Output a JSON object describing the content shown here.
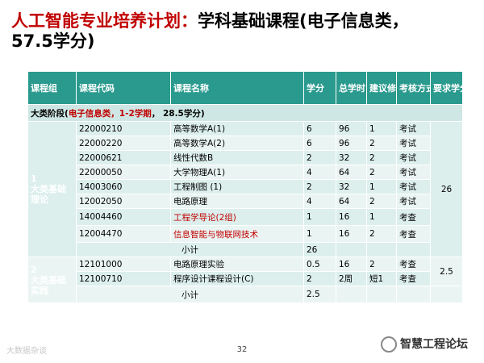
{
  "title": {
    "part1": "人工智能专业培养计划：",
    "part2": "学科基础课程(电子信息类，",
    "part3": "57.5学分)"
  },
  "table": {
    "headers": [
      "课程组",
      "课程代码",
      "课程名称",
      "学分",
      "总学时",
      "建议修读学期",
      "考核方式",
      "要求学分"
    ],
    "section": {
      "prefix": "大类阶段(",
      "highlight": "电子信息类，1-2学期",
      "suffix": "， 28.5学分)"
    },
    "group1": {
      "name": "1\n大类基础\n理论",
      "required": "26"
    },
    "rows1": [
      {
        "code": "22000210",
        "name": "高等数学A(1)",
        "credit": "6",
        "hours": "96",
        "term": "1",
        "exam": "考试"
      },
      {
        "code": "22000220",
        "name": "高等数学A(2)",
        "credit": "6",
        "hours": "96",
        "term": "2",
        "exam": "考试"
      },
      {
        "code": "22000621",
        "name": "线性代数B",
        "credit": "2",
        "hours": "32",
        "term": "2",
        "exam": "考试"
      },
      {
        "code": "22000050",
        "name": "大学物理A(1)",
        "credit": "4",
        "hours": "64",
        "term": "2",
        "exam": "考试"
      },
      {
        "code": "14003060",
        "name": "工程制图 (1)",
        "credit": "2",
        "hours": "32",
        "term": "1",
        "exam": "考试"
      },
      {
        "code": "12002050",
        "name": "电路原理",
        "credit": "4",
        "hours": "64",
        "term": "2",
        "exam": "考试"
      },
      {
        "code": "14004460",
        "name": "工程学导论(2组)",
        "credit": "1",
        "hours": "16",
        "term": "1",
        "exam": "考查"
      },
      {
        "code": "12004470",
        "name": "信息智能与物联网技术",
        "credit": "1",
        "hours": "16",
        "term": "2",
        "exam": "考查"
      }
    ],
    "subtotal1": {
      "label": "小计",
      "credit": "26"
    },
    "group2": {
      "name": "2\n大类基础\n实践",
      "required": "2.5"
    },
    "rows2": [
      {
        "code": "12101000",
        "name": "电路原理实验",
        "credit": "0.5",
        "hours": "16",
        "term": "2",
        "exam": "考查"
      },
      {
        "code": "12100710",
        "name": "程序设计课程设计(C)",
        "credit": "2",
        "hours": "2周",
        "term": "短1",
        "exam": "考查"
      }
    ],
    "subtotal2": {
      "label": "小计",
      "credit": "2.5"
    }
  },
  "page_number": "32",
  "watermark_left": "大数据杂谈",
  "watermark_right": "智慧工程论坛"
}
